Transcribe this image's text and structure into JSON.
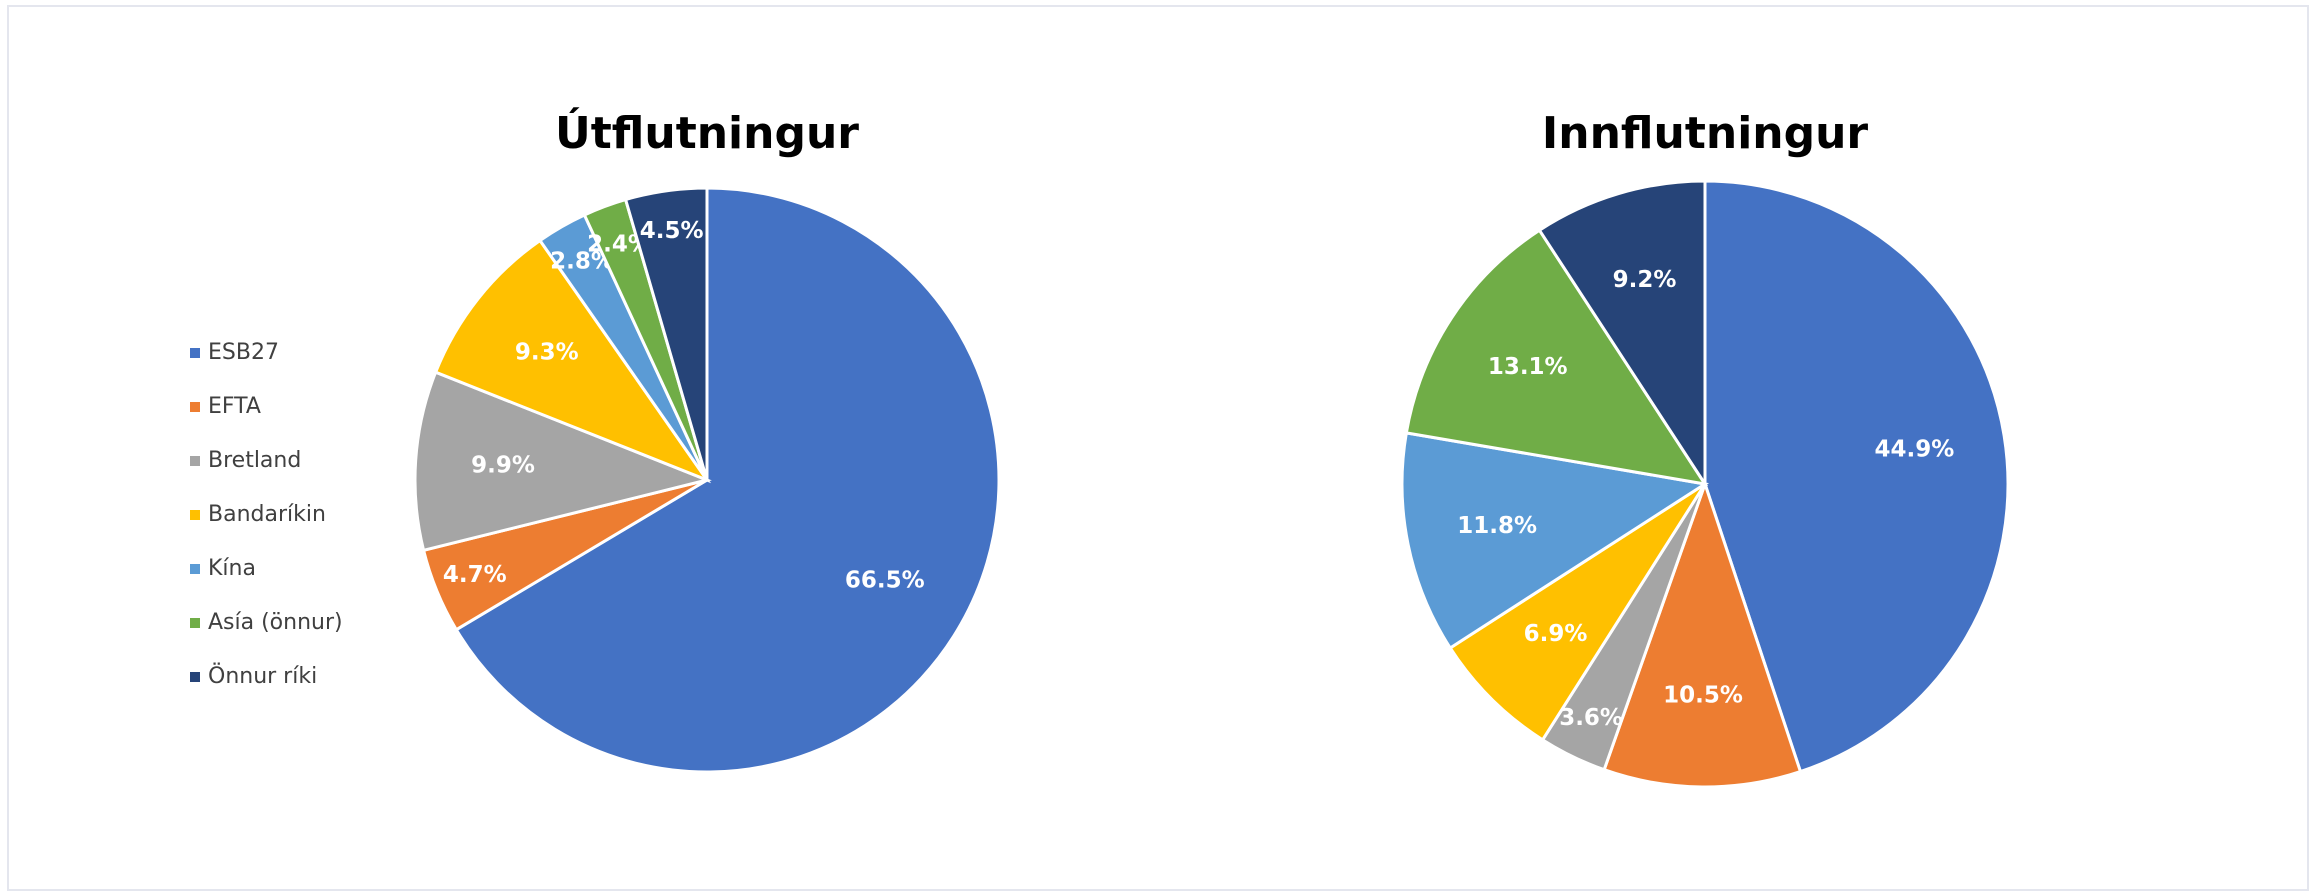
{
  "legend": {
    "items": [
      "ESB27",
      "EFTA",
      "Bretland",
      "Bandaríkin",
      "Kína",
      "Asía (önnur)",
      "Önnur ríki"
    ],
    "colors": [
      "#4472c4",
      "#ed7d31",
      "#a5a5a5",
      "#ffc000",
      "#5b9bd5",
      "#70ad47",
      "#264478"
    ]
  },
  "chart_data": [
    {
      "type": "pie",
      "title": "Útflutningur",
      "values": [
        66.5,
        4.7,
        9.9,
        9.3,
        2.8,
        2.4,
        4.5
      ],
      "value_labels": [
        "66.5%",
        "4.7%",
        "9.9%",
        "9.3%",
        "2.8%",
        "2.4%",
        "4.5%"
      ]
    },
    {
      "type": "pie",
      "title": "Innflutningur",
      "values": [
        44.9,
        10.5,
        3.6,
        6.9,
        11.8,
        13.1,
        9.2
      ],
      "value_labels": [
        "44.9%",
        "10.5%",
        "3.6%",
        "6.9%",
        "11.8%",
        "13.1%",
        "9.2%"
      ]
    }
  ]
}
